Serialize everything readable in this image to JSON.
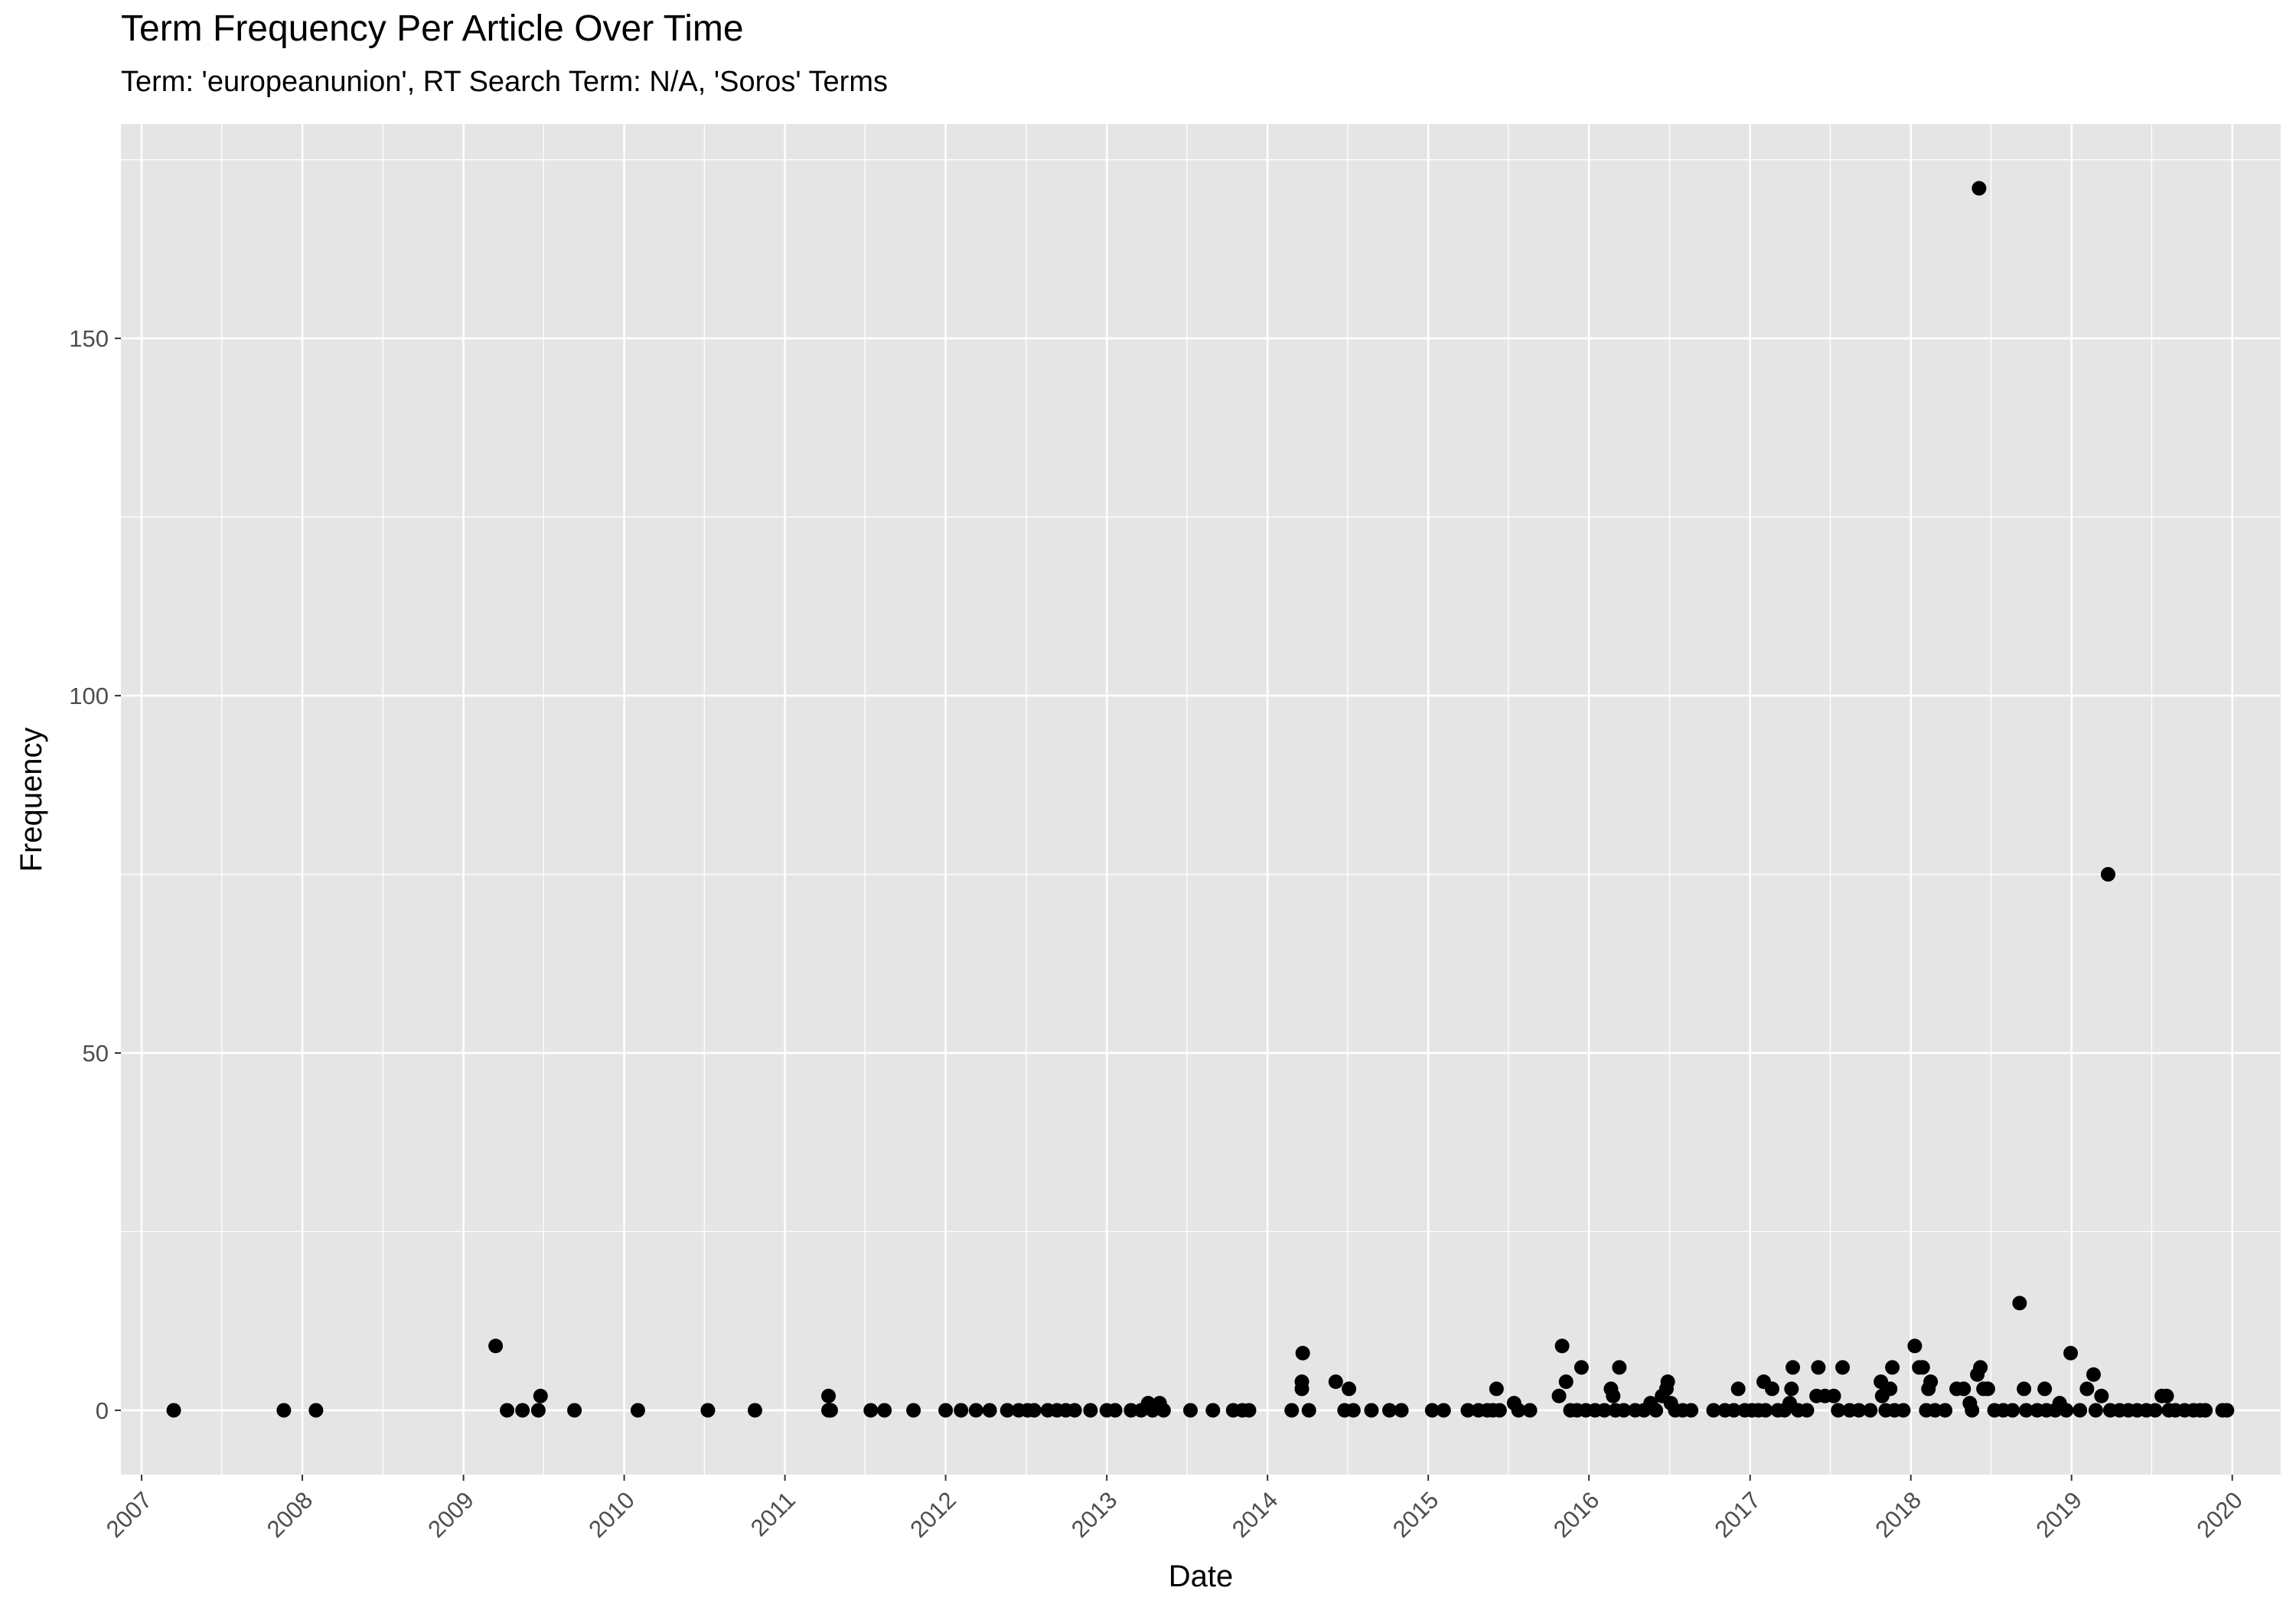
{
  "chart_data": {
    "type": "scatter",
    "title": "Term Frequency Per Article Over Time",
    "subtitle": "Term: 'europeanunion', RT Search Term: N/A, 'Soros' Terms",
    "xlabel": "Date",
    "ylabel": "Frequency",
    "x_tick_labels": [
      "2007",
      "2008",
      "2009",
      "2010",
      "2011",
      "2012",
      "2013",
      "2014",
      "2015",
      "2016",
      "2017",
      "2018",
      "2019",
      "2020"
    ],
    "y_tick_labels": [
      "0",
      "50",
      "100",
      "150"
    ],
    "y_ticks": [
      0,
      50,
      100,
      150
    ],
    "xlim": [
      "2006-11-15",
      "2020-04-20"
    ],
    "ylim": [
      -9,
      180
    ],
    "grid": true,
    "legend": "none",
    "colors": {
      "panel": "#e5e5e5",
      "grid": "#ffffff",
      "point": "#000000"
    },
    "points": [
      {
        "x": "2007-03-15",
        "y": 0
      },
      {
        "x": "2007-11-20",
        "y": 0
      },
      {
        "x": "2008-02-01",
        "y": 0
      },
      {
        "x": "2009-03-15",
        "y": 9
      },
      {
        "x": "2009-04-10",
        "y": 0
      },
      {
        "x": "2009-05-15",
        "y": 0
      },
      {
        "x": "2009-06-20",
        "y": 0
      },
      {
        "x": "2009-06-25",
        "y": 2
      },
      {
        "x": "2009-09-10",
        "y": 0
      },
      {
        "x": "2010-02-01",
        "y": 0
      },
      {
        "x": "2010-07-10",
        "y": 0
      },
      {
        "x": "2010-10-25",
        "y": 0
      },
      {
        "x": "2011-04-10",
        "y": 0
      },
      {
        "x": "2011-04-10",
        "y": 2
      },
      {
        "x": "2011-04-15",
        "y": 0
      },
      {
        "x": "2011-07-15",
        "y": 0
      },
      {
        "x": "2011-08-15",
        "y": 0
      },
      {
        "x": "2011-10-20",
        "y": 0
      },
      {
        "x": "2012-01-01",
        "y": 0
      },
      {
        "x": "2012-02-05",
        "y": 0
      },
      {
        "x": "2012-03-10",
        "y": 0
      },
      {
        "x": "2012-04-10",
        "y": 0
      },
      {
        "x": "2012-05-20",
        "y": 0
      },
      {
        "x": "2012-06-15",
        "y": 0
      },
      {
        "x": "2012-07-05",
        "y": 0
      },
      {
        "x": "2012-07-20",
        "y": 0
      },
      {
        "x": "2012-08-20",
        "y": 0
      },
      {
        "x": "2012-09-10",
        "y": 0
      },
      {
        "x": "2012-09-30",
        "y": 0
      },
      {
        "x": "2012-10-20",
        "y": 0
      },
      {
        "x": "2012-11-25",
        "y": 0
      },
      {
        "x": "2013-01-01",
        "y": 0
      },
      {
        "x": "2013-01-20",
        "y": 0
      },
      {
        "x": "2013-02-25",
        "y": 0
      },
      {
        "x": "2013-03-20",
        "y": 0
      },
      {
        "x": "2013-04-05",
        "y": 1
      },
      {
        "x": "2013-04-15",
        "y": 0
      },
      {
        "x": "2013-05-01",
        "y": 1
      },
      {
        "x": "2013-05-10",
        "y": 0
      },
      {
        "x": "2013-07-10",
        "y": 0
      },
      {
        "x": "2013-08-30",
        "y": 0
      },
      {
        "x": "2013-10-15",
        "y": 0
      },
      {
        "x": "2013-11-05",
        "y": 0
      },
      {
        "x": "2013-11-20",
        "y": 0
      },
      {
        "x": "2014-02-25",
        "y": 0
      },
      {
        "x": "2014-03-20",
        "y": 3
      },
      {
        "x": "2014-03-20",
        "y": 4
      },
      {
        "x": "2014-03-22",
        "y": 8
      },
      {
        "x": "2014-04-05",
        "y": 0
      },
      {
        "x": "2014-06-05",
        "y": 4
      },
      {
        "x": "2014-06-25",
        "y": 0
      },
      {
        "x": "2014-07-05",
        "y": 3
      },
      {
        "x": "2014-07-15",
        "y": 0
      },
      {
        "x": "2014-08-25",
        "y": 0
      },
      {
        "x": "2014-10-05",
        "y": 0
      },
      {
        "x": "2014-11-01",
        "y": 0
      },
      {
        "x": "2015-01-10",
        "y": 0
      },
      {
        "x": "2015-02-05",
        "y": 0
      },
      {
        "x": "2015-04-01",
        "y": 0
      },
      {
        "x": "2015-04-25",
        "y": 0
      },
      {
        "x": "2015-05-15",
        "y": 0
      },
      {
        "x": "2015-05-28",
        "y": 0
      },
      {
        "x": "2015-06-05",
        "y": 3
      },
      {
        "x": "2015-06-12",
        "y": 0
      },
      {
        "x": "2015-07-15",
        "y": 1
      },
      {
        "x": "2015-07-25",
        "y": 0
      },
      {
        "x": "2015-08-20",
        "y": 0
      },
      {
        "x": "2015-10-25",
        "y": 2
      },
      {
        "x": "2015-11-01",
        "y": 9
      },
      {
        "x": "2015-11-10",
        "y": 4
      },
      {
        "x": "2015-11-20",
        "y": 0
      },
      {
        "x": "2015-12-05",
        "y": 0
      },
      {
        "x": "2015-12-15",
        "y": 6
      },
      {
        "x": "2015-12-25",
        "y": 0
      },
      {
        "x": "2016-01-15",
        "y": 0
      },
      {
        "x": "2016-02-05",
        "y": 0
      },
      {
        "x": "2016-02-20",
        "y": 3
      },
      {
        "x": "2016-02-25",
        "y": 2
      },
      {
        "x": "2016-03-01",
        "y": 0
      },
      {
        "x": "2016-03-10",
        "y": 6
      },
      {
        "x": "2016-03-20",
        "y": 0
      },
      {
        "x": "2016-04-15",
        "y": 0
      },
      {
        "x": "2016-05-05",
        "y": 0
      },
      {
        "x": "2016-05-20",
        "y": 1
      },
      {
        "x": "2016-06-01",
        "y": 0
      },
      {
        "x": "2016-06-15",
        "y": 2
      },
      {
        "x": "2016-06-25",
        "y": 3
      },
      {
        "x": "2016-06-28",
        "y": 4
      },
      {
        "x": "2016-07-05",
        "y": 1
      },
      {
        "x": "2016-07-15",
        "y": 0
      },
      {
        "x": "2016-08-01",
        "y": 0
      },
      {
        "x": "2016-08-20",
        "y": 0
      },
      {
        "x": "2016-10-10",
        "y": 0
      },
      {
        "x": "2016-11-05",
        "y": 0
      },
      {
        "x": "2016-11-25",
        "y": 0
      },
      {
        "x": "2016-12-05",
        "y": 3
      },
      {
        "x": "2016-12-20",
        "y": 0
      },
      {
        "x": "2017-01-05",
        "y": 0
      },
      {
        "x": "2017-01-20",
        "y": 0
      },
      {
        "x": "2017-02-01",
        "y": 4
      },
      {
        "x": "2017-02-05",
        "y": 0
      },
      {
        "x": "2017-02-20",
        "y": 3
      },
      {
        "x": "2017-03-05",
        "y": 0
      },
      {
        "x": "2017-03-20",
        "y": 0
      },
      {
        "x": "2017-04-01",
        "y": 1
      },
      {
        "x": "2017-04-05",
        "y": 3
      },
      {
        "x": "2017-04-08",
        "y": 6
      },
      {
        "x": "2017-04-20",
        "y": 0
      },
      {
        "x": "2017-05-10",
        "y": 0
      },
      {
        "x": "2017-06-01",
        "y": 2
      },
      {
        "x": "2017-06-05",
        "y": 6
      },
      {
        "x": "2017-06-20",
        "y": 2
      },
      {
        "x": "2017-07-10",
        "y": 2
      },
      {
        "x": "2017-07-20",
        "y": 0
      },
      {
        "x": "2017-07-30",
        "y": 6
      },
      {
        "x": "2017-08-15",
        "y": 0
      },
      {
        "x": "2017-09-05",
        "y": 0
      },
      {
        "x": "2017-10-01",
        "y": 0
      },
      {
        "x": "2017-10-25",
        "y": 4
      },
      {
        "x": "2017-10-28",
        "y": 2
      },
      {
        "x": "2017-11-05",
        "y": 0
      },
      {
        "x": "2017-11-15",
        "y": 3
      },
      {
        "x": "2017-11-20",
        "y": 6
      },
      {
        "x": "2017-11-25",
        "y": 0
      },
      {
        "x": "2017-12-15",
        "y": 0
      },
      {
        "x": "2018-01-10",
        "y": 9
      },
      {
        "x": "2018-01-20",
        "y": 6
      },
      {
        "x": "2018-01-28",
        "y": 6
      },
      {
        "x": "2018-02-05",
        "y": 0
      },
      {
        "x": "2018-02-10",
        "y": 3
      },
      {
        "x": "2018-02-15",
        "y": 4
      },
      {
        "x": "2018-02-25",
        "y": 0
      },
      {
        "x": "2018-03-20",
        "y": 0
      },
      {
        "x": "2018-04-15",
        "y": 3
      },
      {
        "x": "2018-05-01",
        "y": 3
      },
      {
        "x": "2018-05-15",
        "y": 1
      },
      {
        "x": "2018-05-20",
        "y": 0
      },
      {
        "x": "2018-06-01",
        "y": 5
      },
      {
        "x": "2018-06-05",
        "y": 171
      },
      {
        "x": "2018-06-08",
        "y": 6
      },
      {
        "x": "2018-06-15",
        "y": 3
      },
      {
        "x": "2018-06-25",
        "y": 3
      },
      {
        "x": "2018-07-10",
        "y": 0
      },
      {
        "x": "2018-07-30",
        "y": 0
      },
      {
        "x": "2018-08-20",
        "y": 0
      },
      {
        "x": "2018-09-05",
        "y": 15
      },
      {
        "x": "2018-09-15",
        "y": 3
      },
      {
        "x": "2018-09-20",
        "y": 0
      },
      {
        "x": "2018-10-15",
        "y": 0
      },
      {
        "x": "2018-11-01",
        "y": 3
      },
      {
        "x": "2018-11-05",
        "y": 0
      },
      {
        "x": "2018-11-25",
        "y": 0
      },
      {
        "x": "2018-12-05",
        "y": 1
      },
      {
        "x": "2018-12-20",
        "y": 0
      },
      {
        "x": "2018-12-30",
        "y": 8
      },
      {
        "x": "2019-01-20",
        "y": 0
      },
      {
        "x": "2019-02-05",
        "y": 3
      },
      {
        "x": "2019-02-20",
        "y": 5
      },
      {
        "x": "2019-02-25",
        "y": 0
      },
      {
        "x": "2019-03-10",
        "y": 2
      },
      {
        "x": "2019-03-25",
        "y": 75
      },
      {
        "x": "2019-03-30",
        "y": 0
      },
      {
        "x": "2019-04-20",
        "y": 0
      },
      {
        "x": "2019-05-10",
        "y": 0
      },
      {
        "x": "2019-05-30",
        "y": 0
      },
      {
        "x": "2019-06-20",
        "y": 0
      },
      {
        "x": "2019-07-10",
        "y": 0
      },
      {
        "x": "2019-07-25",
        "y": 2
      },
      {
        "x": "2019-08-05",
        "y": 2
      },
      {
        "x": "2019-08-10",
        "y": 0
      },
      {
        "x": "2019-08-25",
        "y": 0
      },
      {
        "x": "2019-09-15",
        "y": 0
      },
      {
        "x": "2019-10-05",
        "y": 0
      },
      {
        "x": "2019-10-20",
        "y": 0
      },
      {
        "x": "2019-11-01",
        "y": 0
      },
      {
        "x": "2019-12-10",
        "y": 0
      },
      {
        "x": "2019-12-20",
        "y": 0
      }
    ]
  }
}
